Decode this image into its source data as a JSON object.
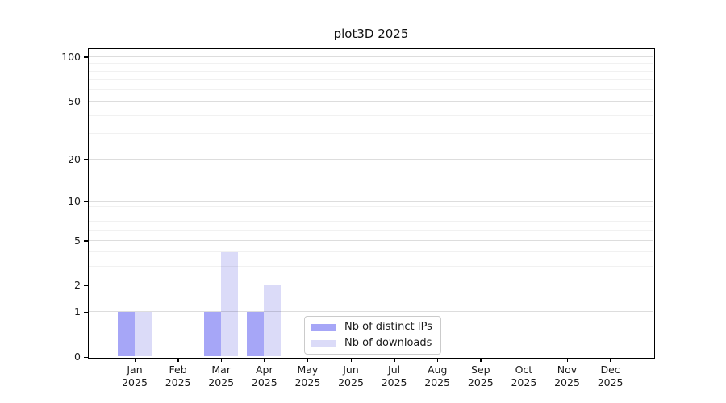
{
  "title": "plot3D 2025",
  "chart_data": {
    "type": "bar",
    "title": "plot3D 2025",
    "categories": [
      "Jan 2025",
      "Feb 2025",
      "Mar 2025",
      "Apr 2025",
      "May 2025",
      "Jun 2025",
      "Jul 2025",
      "Aug 2025",
      "Sep 2025",
      "Oct 2025",
      "Nov 2025",
      "Dec 2025"
    ],
    "month_labels": [
      "Jan",
      "Feb",
      "Mar",
      "Apr",
      "May",
      "Jun",
      "Jul",
      "Aug",
      "Sep",
      "Oct",
      "Nov",
      "Dec"
    ],
    "year_label": "2025",
    "series": [
      {
        "name": "Nb of distinct IPs",
        "color": "#a6a6f7",
        "values": [
          1,
          0,
          1,
          1,
          0,
          0,
          0,
          0,
          0,
          0,
          0,
          0
        ]
      },
      {
        "name": "Nb of downloads",
        "color": "#dbdbf8",
        "values": [
          1,
          0,
          4,
          2,
          0,
          0,
          0,
          0,
          0,
          0,
          0,
          0
        ]
      }
    ],
    "xlabel": "",
    "ylabel": "",
    "ylim": [
      0,
      100
    ],
    "y_scale": "log10(value+1)",
    "y_tick_labels": [
      100,
      50,
      20,
      10,
      5,
      2,
      1,
      0
    ],
    "y_minor_gridlines": [
      3,
      4,
      6,
      7,
      8,
      9,
      30,
      40,
      60,
      70,
      80,
      90
    ],
    "grid": true,
    "legend_position": "inside lower center"
  },
  "colors": {
    "axis": "#000000",
    "text": "#1a1a1a",
    "major_grid": "rgba(0,0,0,0.135)",
    "minor_grid": "rgba(0,0,0,0.055)",
    "legend_border": "#cbcbcb",
    "background": "#ffffff"
  }
}
